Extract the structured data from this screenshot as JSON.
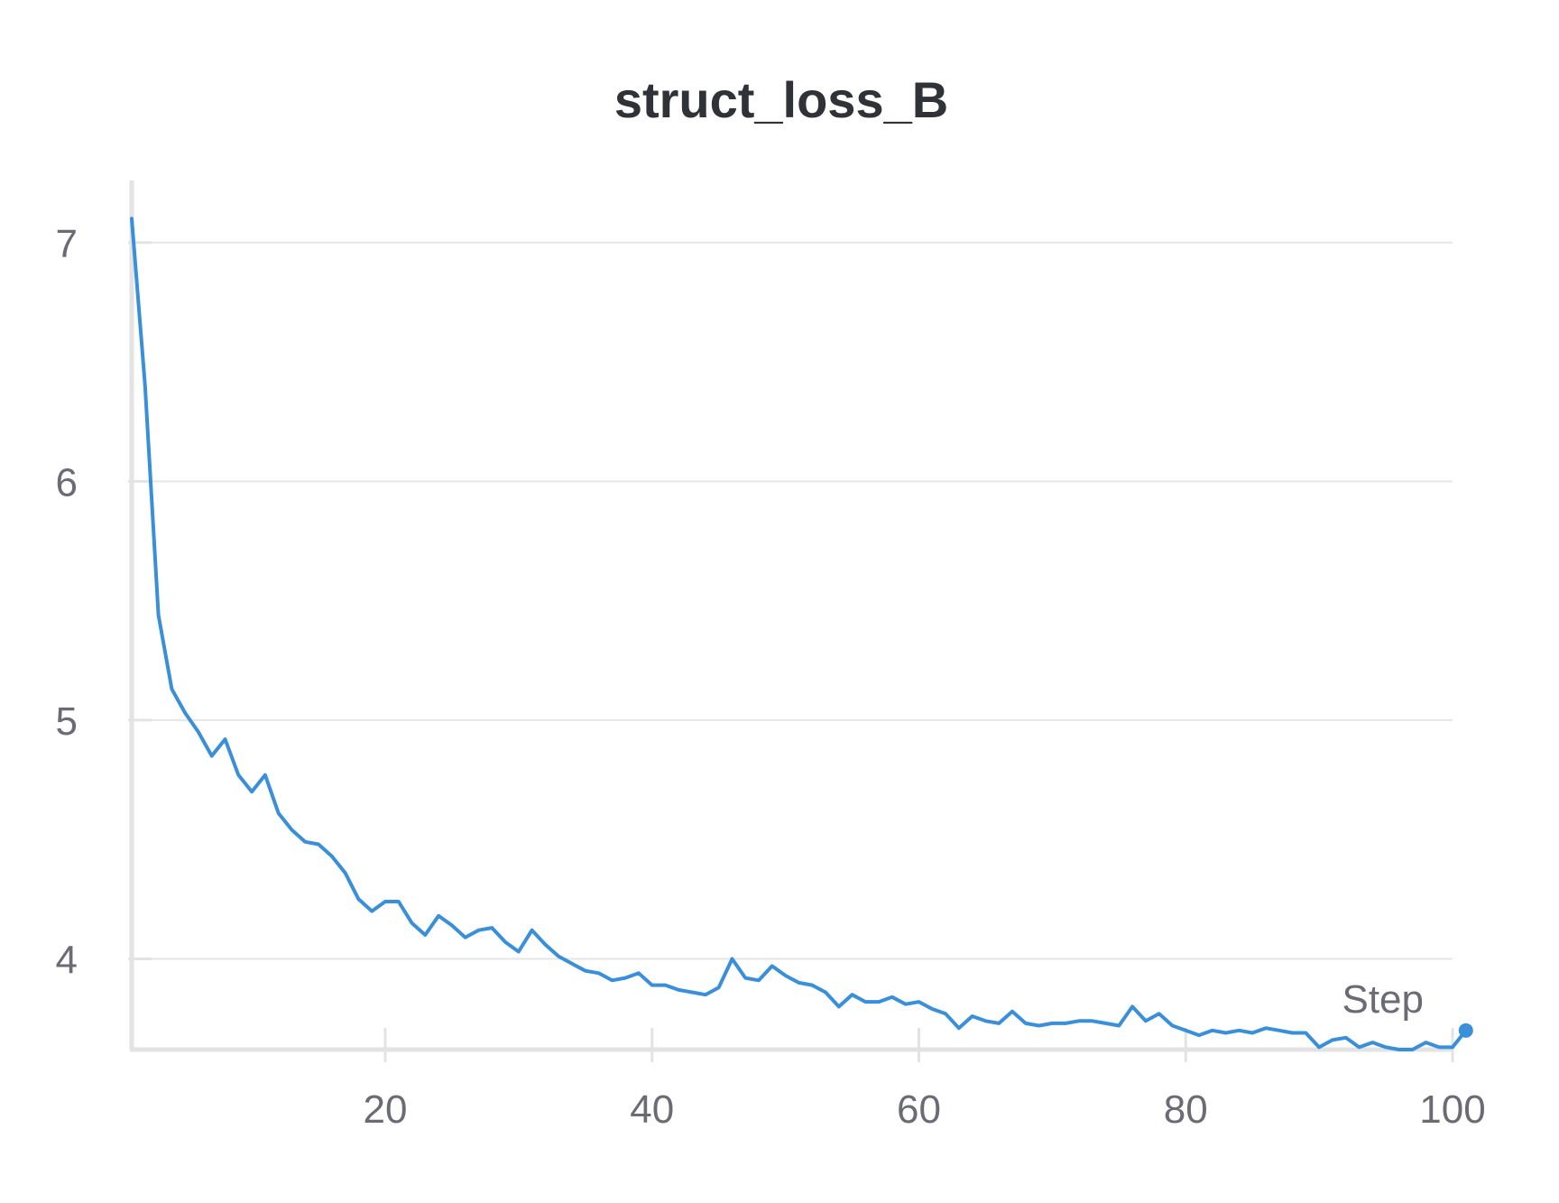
{
  "chart_data": {
    "type": "line",
    "title": "struct_loss_B",
    "xlabel": "Step",
    "ylabel": "",
    "xlim": [
      1,
      100
    ],
    "ylim": [
      3.62,
      7.26
    ],
    "x_ticks": [
      20,
      40,
      60,
      80,
      100
    ],
    "y_ticks": [
      4,
      5,
      6,
      7
    ],
    "grid": "horizontal",
    "line_color": "#3a8fd9",
    "series": [
      {
        "values": [
          7.1,
          6.4,
          5.44,
          5.13,
          5.03,
          4.95,
          4.85,
          4.92,
          4.77,
          4.7,
          4.77,
          4.61,
          4.54,
          4.49,
          4.48,
          4.43,
          4.36,
          4.25,
          4.2,
          4.24,
          4.24,
          4.15,
          4.1,
          4.18,
          4.14,
          4.09,
          4.12,
          4.13,
          4.07,
          4.03,
          4.12,
          4.06,
          4.01,
          3.98,
          3.95,
          3.94,
          3.91,
          3.92,
          3.94,
          3.89,
          3.89,
          3.87,
          3.86,
          3.85,
          3.88,
          4.0,
          3.92,
          3.91,
          3.97,
          3.93,
          3.9,
          3.89,
          3.86,
          3.8,
          3.85,
          3.82,
          3.82,
          3.84,
          3.81,
          3.82,
          3.79,
          3.77,
          3.71,
          3.76,
          3.74,
          3.73,
          3.78,
          3.73,
          3.72,
          3.73,
          3.73,
          3.74,
          3.74,
          3.73,
          3.72,
          3.8,
          3.74,
          3.77,
          3.72,
          3.7,
          3.68,
          3.7,
          3.69,
          3.7,
          3.69,
          3.71,
          3.7,
          3.69,
          3.69,
          3.63,
          3.66,
          3.67,
          3.63,
          3.65,
          3.63,
          3.62,
          3.62,
          3.65,
          3.63,
          3.63,
          3.7
        ]
      }
    ]
  }
}
